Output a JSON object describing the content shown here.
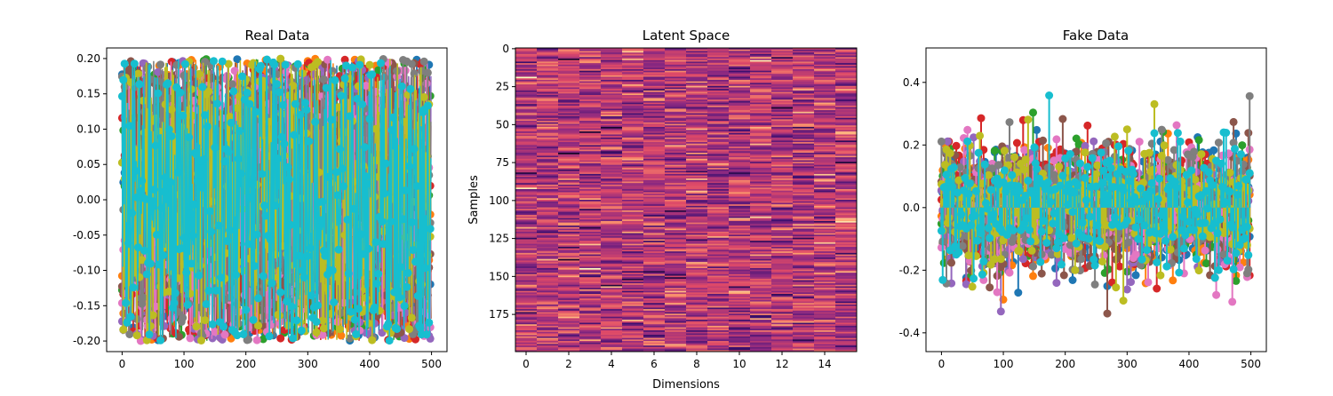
{
  "chart_data": [
    {
      "type": "line",
      "title": "Real Data",
      "xlabel": "",
      "ylabel": "",
      "xlim": [
        -25,
        525
      ],
      "ylim": [
        -0.215,
        0.215
      ],
      "xticks": [
        0,
        100,
        200,
        300,
        400,
        500
      ],
      "yticks": [
        0.2,
        0.15,
        0.1,
        0.05,
        0.0,
        -0.05,
        -0.1,
        -0.15,
        -0.2
      ],
      "ytick_format": 2,
      "n_points": 500,
      "value_range": [
        -0.2,
        0.2
      ],
      "marker": "o",
      "series_colors": [
        "#1f77b4",
        "#ff7f0e",
        "#2ca02c",
        "#d62728",
        "#9467bd",
        "#8c564b",
        "#e377c2",
        "#7f7f7f",
        "#bcbd22",
        "#17becf"
      ],
      "grid": false
    },
    {
      "type": "heatmap",
      "title": "Latent Space",
      "xlabel": "Dimensions",
      "ylabel": "Samples",
      "rows": 200,
      "cols": 16,
      "xlim": [
        -0.5,
        15.5
      ],
      "ylim": [
        -0.5,
        199.5
      ],
      "xticks": [
        0,
        2,
        4,
        6,
        8,
        10,
        12,
        14
      ],
      "yticks": [
        0,
        25,
        50,
        75,
        100,
        125,
        150,
        175
      ],
      "colormap": [
        "#000004",
        "#3b0f70",
        "#8c2981",
        "#de4968",
        "#fe9f6d",
        "#fcfdbf"
      ],
      "grid": false
    },
    {
      "type": "scatter",
      "title": "Fake Data",
      "xlabel": "",
      "ylabel": "",
      "xlim": [
        -25,
        525
      ],
      "ylim": [
        -0.46,
        0.51
      ],
      "xticks": [
        0,
        100,
        200,
        300,
        400,
        500
      ],
      "yticks": [
        0.4,
        0.2,
        0.0,
        -0.2,
        -0.4
      ],
      "ytick_format": 1,
      "n_points": 500,
      "marker": "o",
      "style": "stem",
      "series_colors": [
        "#1f77b4",
        "#ff7f0e",
        "#2ca02c",
        "#d62728",
        "#9467bd",
        "#8c564b",
        "#e377c2",
        "#7f7f7f",
        "#bcbd22",
        "#17becf"
      ],
      "grid": false
    }
  ]
}
